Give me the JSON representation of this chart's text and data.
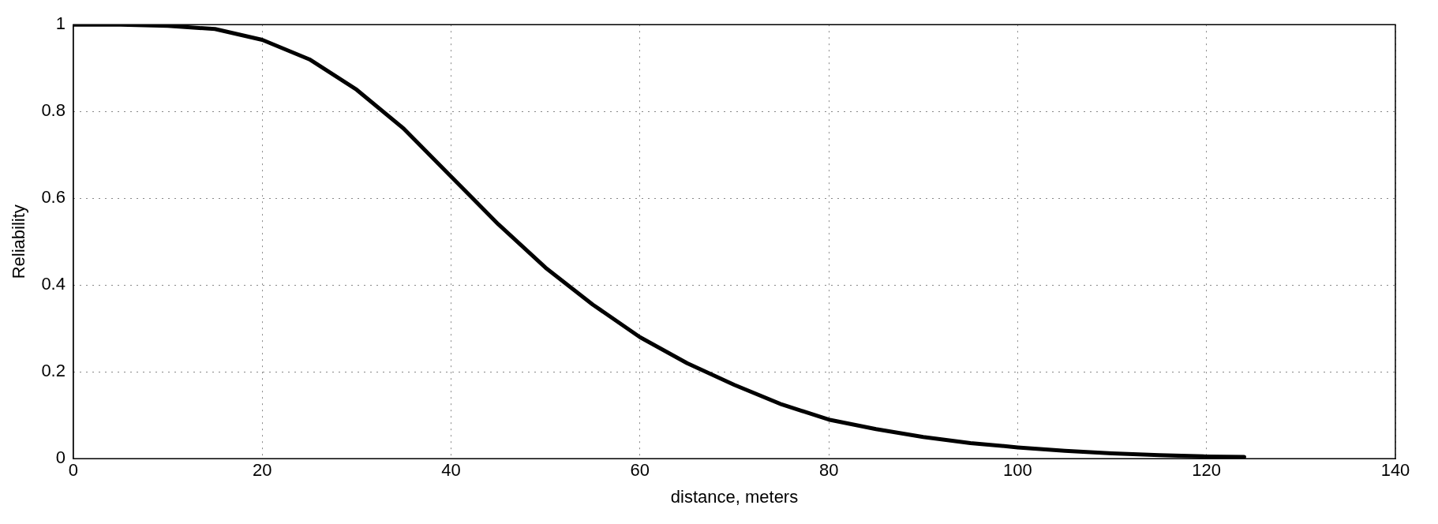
{
  "chart_data": {
    "type": "line",
    "xlabel": "distance, meters",
    "ylabel": "Reliability",
    "x": [
      0,
      5,
      10,
      15,
      20,
      25,
      30,
      35,
      40,
      45,
      50,
      55,
      60,
      65,
      70,
      75,
      80,
      85,
      90,
      95,
      100,
      105,
      110,
      115,
      120,
      124
    ],
    "series": [
      {
        "color": "#000000",
        "values": [
          1,
          1,
          0.997,
          0.99,
          0.965,
          0.92,
          0.85,
          0.76,
          0.65,
          0.54,
          0.44,
          0.355,
          0.28,
          0.22,
          0.17,
          0.125,
          0.09,
          0.068,
          0.05,
          0.036,
          0.026,
          0.018,
          0.012,
          0.008,
          0.005,
          0.004
        ]
      }
    ],
    "xlim": [
      0,
      140
    ],
    "xticks": [
      0,
      20,
      40,
      60,
      80,
      100,
      120,
      140
    ],
    "ylim": [
      0,
      1
    ],
    "yticks": [
      0,
      0.2,
      0.4,
      0.6,
      0.8,
      1
    ],
    "grid": true,
    "legend": false,
    "marker": "none",
    "line_style": "solid"
  }
}
